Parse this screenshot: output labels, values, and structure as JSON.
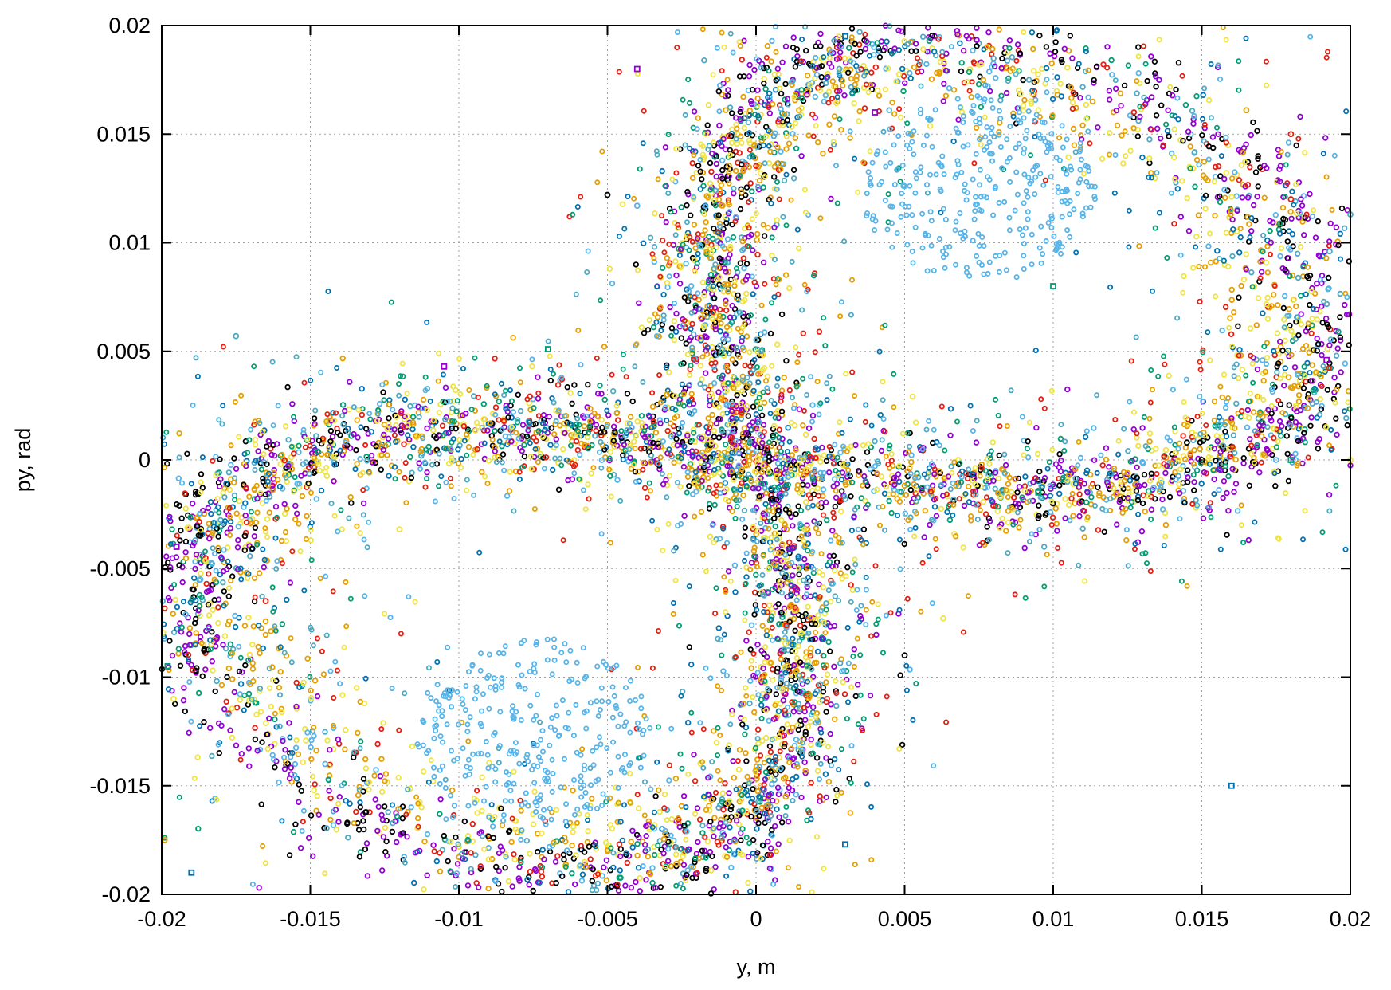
{
  "chart_data": {
    "type": "scatter",
    "title": "",
    "xlabel": "y, m",
    "ylabel": "py, rad",
    "xlim": [
      -0.02,
      0.02
    ],
    "ylim": [
      -0.02,
      0.02
    ],
    "grid": true,
    "legend": "none",
    "x_ticks": [
      {
        "value": -0.02,
        "label": "-0.02"
      },
      {
        "value": -0.015,
        "label": "-0.015"
      },
      {
        "value": -0.01,
        "label": "-0.01"
      },
      {
        "value": -0.005,
        "label": "-0.005"
      },
      {
        "value": 0,
        "label": "0"
      },
      {
        "value": 0.005,
        "label": "0.005"
      },
      {
        "value": 0.01,
        "label": "0.01"
      },
      {
        "value": 0.015,
        "label": "0.015"
      },
      {
        "value": 0.02,
        "label": "0.02"
      }
    ],
    "y_ticks": [
      {
        "value": 0.02,
        "label": "0.02"
      },
      {
        "value": 0.015,
        "label": "0.015"
      },
      {
        "value": 0.01,
        "label": "0.01"
      },
      {
        "value": 0.005,
        "label": "0.005"
      },
      {
        "value": 0,
        "label": "0"
      },
      {
        "value": -0.005,
        "label": "-0.005"
      },
      {
        "value": -0.01,
        "label": "-0.01"
      },
      {
        "value": -0.015,
        "label": "-0.015"
      },
      {
        "value": -0.02,
        "label": "-0.02"
      }
    ],
    "series_colors": [
      "#9400d3",
      "#000000",
      "#56b4e9",
      "#009e73",
      "#f0e442",
      "#e69f00",
      "#0072b2",
      "#e51e10",
      "#4fa9c4"
    ],
    "shape": "figure-eight phase-space orbit symmetric about the origin",
    "lobes": [
      {
        "center": [
          0.0075,
          0.0125
        ],
        "semi_axis_y": 0.0055,
        "semi_axis_py": 0.006
      },
      {
        "center": [
          -0.0075,
          -0.0125
        ],
        "semi_axis_y": 0.0055,
        "semi_axis_py": 0.006
      }
    ],
    "points": [
      [
        -0.0195,
        -0.004
      ],
      [
        -0.0172,
        -0.0035
      ],
      [
        -0.0187,
        -0.0055
      ],
      [
        -0.0198,
        -0.0095
      ],
      [
        -0.0196,
        -0.011
      ],
      [
        -0.0199,
        -0.0175
      ],
      [
        -0.019,
        -0.019
      ],
      [
        -0.0165,
        -0.0065
      ],
      [
        -0.0175,
        0.0057
      ],
      [
        -0.0105,
        0.0043
      ],
      [
        -0.005,
        0.0122
      ],
      [
        -0.004,
        0.0117
      ],
      [
        -0.007,
        0.0051
      ],
      [
        -0.012,
        -0.0032
      ],
      [
        -0.003,
        0.003
      ],
      [
        0.003,
        0.0195
      ],
      [
        0.0028,
        0.0185
      ],
      [
        0.0028,
        0.018
      ],
      [
        0.004,
        0.016
      ],
      [
        0.0145,
        0.0008
      ],
      [
        0.013,
        -0.0001
      ],
      [
        0.0095,
        -0.0015
      ],
      [
        0.0063,
        -0.0073
      ],
      [
        0.001,
        -0.0155
      ],
      [
        0.003,
        -0.0177
      ],
      [
        0.018,
        0.012
      ],
      [
        0.0193,
        0.0096
      ],
      [
        0.0192,
        0.0046
      ],
      [
        0.015,
        0.0
      ],
      [
        0.0175,
        0.0
      ],
      [
        0.018,
        0.0
      ],
      [
        0.02,
        0.0
      ],
      [
        0.0165,
        0.0161
      ],
      [
        0.016,
        -0.015
      ],
      [
        0.018,
        0.015
      ],
      [
        0.02,
        0.0113
      ],
      [
        -0.004,
        0.018
      ],
      [
        0.005,
        -0.009
      ],
      [
        -0.0145,
        -0.014
      ],
      [
        0.01,
        0.008
      ]
    ]
  }
}
